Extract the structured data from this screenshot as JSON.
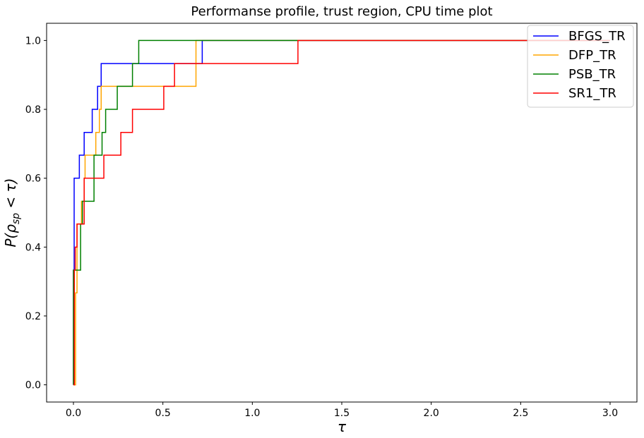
{
  "chart_data": {
    "type": "line",
    "step": "post",
    "title": "Performanse profile, trust region, CPU time plot",
    "xlabel": "τ",
    "ylabel_parts": {
      "main": "P(ρ",
      "sub": "sp",
      "tail": " < τ)"
    },
    "xlim": [
      -0.15,
      3.15
    ],
    "ylim": [
      -0.05,
      1.05
    ],
    "xticks": [
      0.0,
      0.5,
      1.0,
      1.5,
      2.0,
      2.5,
      3.0
    ],
    "xtick_labels": [
      "0.0",
      "0.5",
      "1.0",
      "1.5",
      "2.0",
      "2.5",
      "3.0"
    ],
    "yticks": [
      0.0,
      0.2,
      0.4,
      0.6,
      0.8,
      1.0
    ],
    "ytick_labels": [
      "0.0",
      "0.2",
      "0.4",
      "0.6",
      "0.8",
      "1.0"
    ],
    "grid": false,
    "legend_position": "top-right",
    "series": [
      {
        "name": "BFGS_TR",
        "color": "#0000ff",
        "x": [
          0.0,
          0.0,
          0.004,
          0.007,
          0.033,
          0.06,
          0.105,
          0.135,
          0.155,
          0.72,
          3.0
        ],
        "y": [
          0.0,
          0.333,
          0.6,
          0.6,
          0.667,
          0.733,
          0.8,
          0.867,
          0.933,
          1.0,
          1.0
        ]
      },
      {
        "name": "DFP_TR",
        "color": "#ffa500",
        "x": [
          0.0,
          0.012,
          0.02,
          0.045,
          0.06,
          0.065,
          0.125,
          0.145,
          0.155,
          0.685,
          3.0
        ],
        "y": [
          0.0,
          0.267,
          0.467,
          0.533,
          0.6,
          0.667,
          0.733,
          0.8,
          0.867,
          1.0,
          1.0
        ]
      },
      {
        "name": "PSB_TR",
        "color": "#008000",
        "x": [
          0.0,
          0.0,
          0.008,
          0.04,
          0.05,
          0.115,
          0.16,
          0.18,
          0.245,
          0.33,
          0.365,
          3.0
        ],
        "y": [
          0.0,
          0.333,
          0.333,
          0.467,
          0.533,
          0.667,
          0.733,
          0.8,
          0.867,
          0.933,
          1.0,
          1.0
        ]
      },
      {
        "name": "SR1_TR",
        "color": "#ff0000",
        "x": [
          0.0,
          0.005,
          0.01,
          0.02,
          0.06,
          0.17,
          0.265,
          0.33,
          0.505,
          0.565,
          1.255,
          3.0
        ],
        "y": [
          0.0,
          0.333,
          0.4,
          0.467,
          0.6,
          0.667,
          0.733,
          0.8,
          0.867,
          0.933,
          1.0,
          1.0
        ]
      }
    ]
  }
}
